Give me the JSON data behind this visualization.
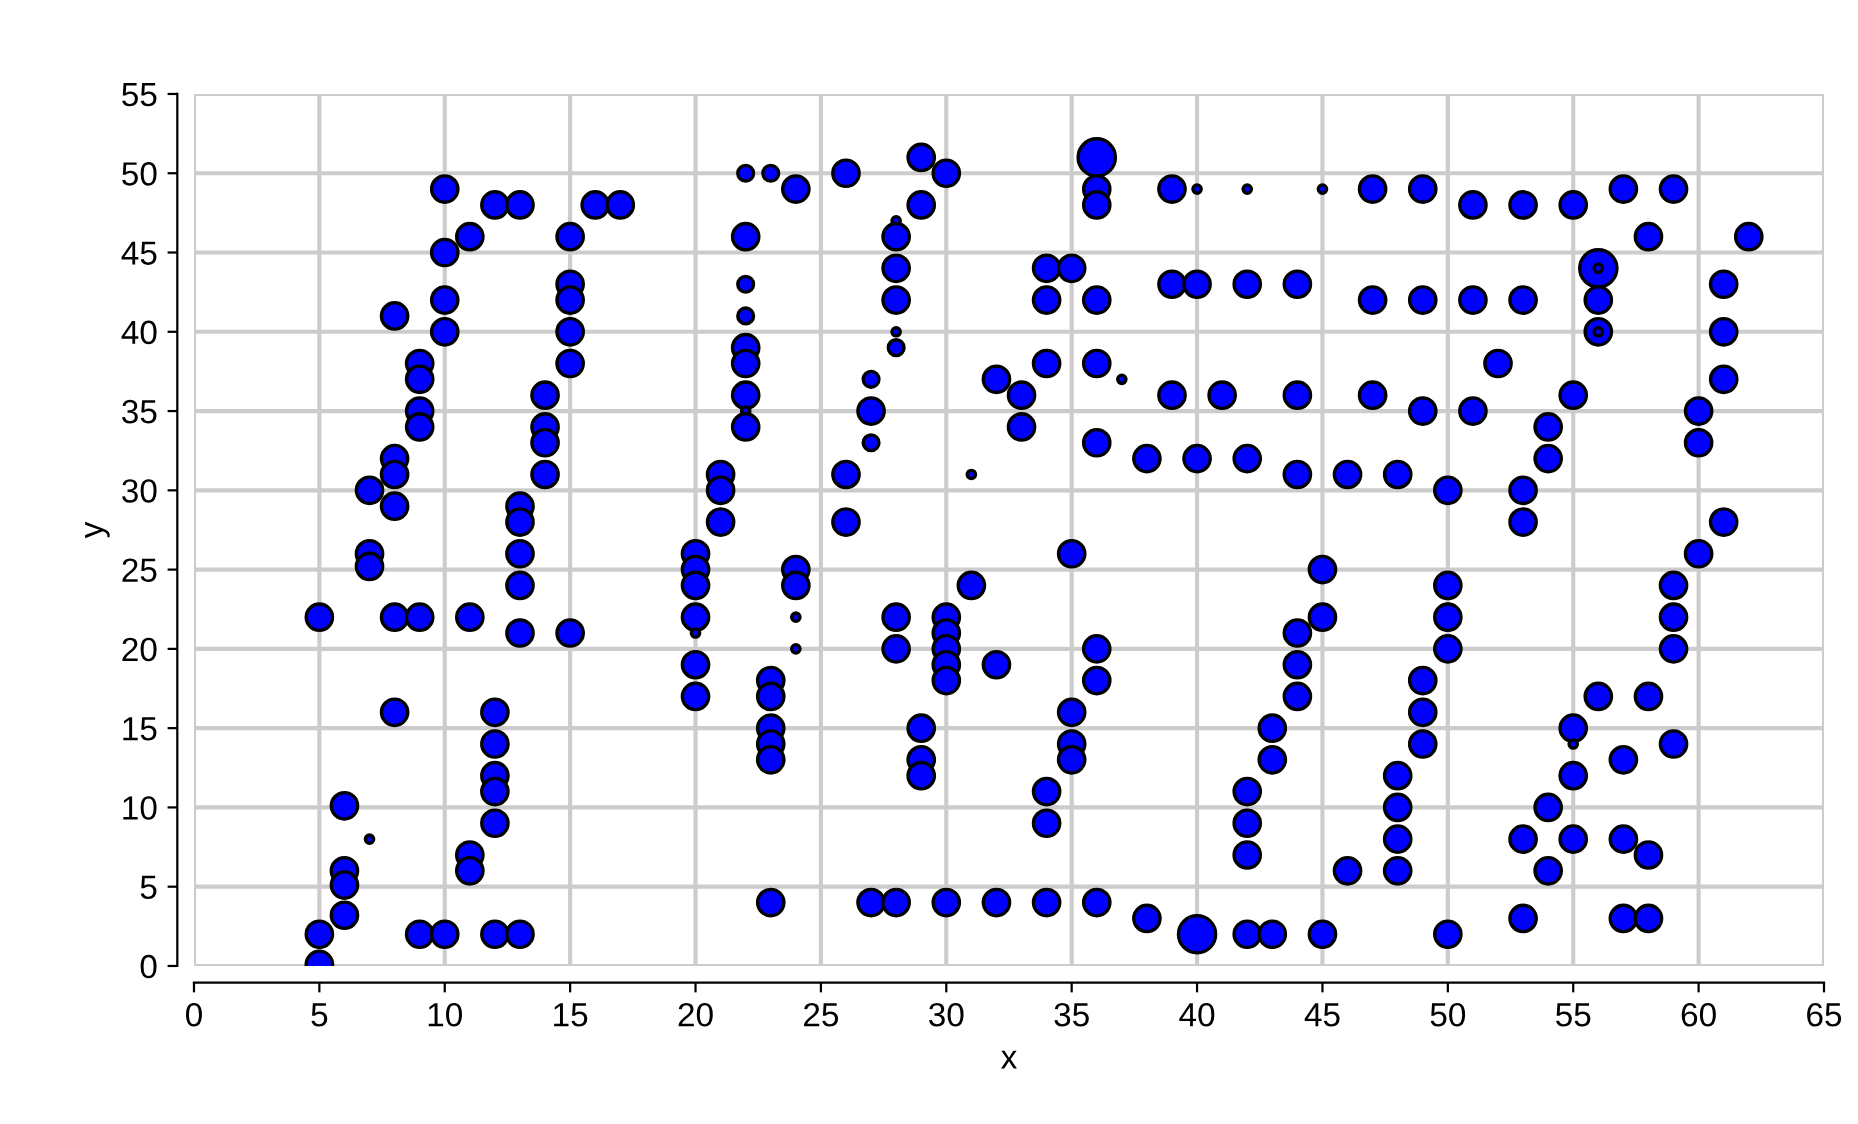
{
  "chart_data": {
    "type": "bubble",
    "xlabel": "x",
    "ylabel": "y",
    "xlim": [
      0,
      65
    ],
    "ylim": [
      0,
      55
    ],
    "xticks": [
      0,
      5,
      10,
      15,
      20,
      25,
      30,
      35,
      40,
      45,
      50,
      55,
      60,
      65
    ],
    "yticks": [
      0,
      5,
      10,
      15,
      20,
      25,
      30,
      35,
      40,
      45,
      50,
      55
    ],
    "grid": true,
    "marker": "circle",
    "series": [
      {
        "color": "#0000ff",
        "x": [
          5,
          5,
          5,
          6,
          6,
          6,
          6,
          7,
          7,
          7,
          7,
          8,
          8,
          8,
          8,
          8,
          8,
          9,
          9,
          9,
          9,
          9,
          9,
          10,
          10,
          10,
          10,
          10,
          11,
          11,
          11,
          11,
          12,
          12,
          12,
          12,
          12,
          12,
          12,
          13,
          13,
          13,
          13,
          13,
          13,
          13,
          14,
          14,
          14,
          14,
          15,
          15,
          15,
          15,
          15,
          15,
          16,
          17,
          20,
          20,
          20,
          20,
          20,
          20,
          20,
          21,
          21,
          21,
          22,
          22,
          22,
          22,
          22,
          22,
          22,
          22,
          22,
          23,
          23,
          23,
          23,
          23,
          23,
          23,
          24,
          24,
          24,
          24,
          24,
          26,
          26,
          26,
          27,
          27,
          27,
          27,
          28,
          28,
          28,
          28,
          28,
          28,
          28,
          28,
          28,
          29,
          29,
          29,
          29,
          29,
          30,
          30,
          30,
          30,
          30,
          30,
          30,
          31,
          31,
          32,
          32,
          32,
          33,
          33,
          34,
          34,
          34,
          34,
          34,
          34,
          35,
          35,
          35,
          35,
          35,
          36,
          36,
          36,
          36,
          36,
          36,
          36,
          36,
          36,
          37,
          38,
          38,
          39,
          39,
          39,
          40,
          40,
          40,
          40,
          41,
          42,
          42,
          42,
          42,
          42,
          42,
          42,
          43,
          43,
          43,
          44,
          44,
          44,
          44,
          44,
          44,
          45,
          45,
          45,
          45,
          46,
          46,
          47,
          47,
          47,
          48,
          48,
          48,
          48,
          48,
          49,
          49,
          49,
          49,
          49,
          49,
          50,
          50,
          50,
          50,
          50,
          51,
          51,
          51,
          52,
          53,
          53,
          53,
          53,
          53,
          53,
          54,
          54,
          54,
          54,
          55,
          55,
          55,
          55,
          55,
          55,
          56,
          56,
          56,
          56,
          56,
          56,
          57,
          57,
          57,
          57,
          58,
          58,
          58,
          58,
          59,
          59,
          59,
          59,
          59,
          60,
          60,
          60,
          61,
          61,
          61,
          61,
          62
        ],
        "values": [
          22,
          2,
          0.1,
          10.1,
          6,
          5.1,
          3.2,
          30,
          26,
          25.2,
          8,
          41,
          32,
          31,
          29,
          22,
          16,
          38,
          37,
          35,
          34,
          22,
          2,
          49,
          45,
          42,
          40,
          2,
          46,
          22,
          7,
          6,
          48,
          16,
          14,
          12,
          11,
          9,
          2,
          48,
          29,
          28,
          26,
          24,
          21,
          2,
          36,
          34,
          33,
          31,
          46,
          43,
          42,
          40,
          38,
          21,
          48,
          48,
          26,
          25,
          24,
          22,
          21,
          19,
          17,
          31,
          30,
          28,
          50,
          46,
          43,
          41,
          39,
          38,
          36,
          35,
          34,
          50,
          18,
          17,
          15,
          14,
          13,
          4,
          49,
          25,
          24,
          22,
          20,
          50,
          31,
          28,
          37,
          35,
          33,
          4,
          47,
          46,
          44,
          42,
          40,
          39,
          22,
          20,
          4,
          51,
          48,
          15,
          13,
          12,
          50,
          22,
          21,
          20,
          19,
          18,
          4,
          31,
          24,
          37,
          19,
          4,
          36,
          34,
          44,
          42,
          38,
          11,
          9,
          4,
          44,
          26,
          16,
          14,
          13,
          51,
          49,
          48,
          42,
          38,
          33,
          20,
          18,
          4,
          37,
          32,
          3,
          49,
          43,
          36,
          49,
          43,
          32,
          2,
          36,
          49,
          43,
          32,
          11,
          9,
          7,
          2,
          15,
          13,
          2,
          43,
          36,
          31,
          21,
          19,
          17,
          49,
          25,
          22,
          2,
          31,
          6,
          49,
          42,
          36,
          31,
          12,
          10,
          8,
          6,
          49,
          42,
          35,
          18,
          16,
          14,
          30,
          24,
          22,
          20,
          2,
          48,
          42,
          35,
          38,
          48,
          42,
          30,
          28,
          8,
          3,
          34,
          32,
          10,
          6,
          48,
          36,
          15,
          14,
          12,
          8,
          44,
          44,
          42,
          40,
          40,
          17,
          49,
          13,
          8,
          3,
          46,
          17,
          7,
          3,
          49,
          24,
          22,
          20,
          14,
          35,
          33,
          26,
          43,
          40,
          37,
          28,
          46
        ],
        "sizes": [
          0.5,
          0.5,
          0.5,
          0.5,
          0.5,
          0.5,
          0.5,
          0.5,
          0.5,
          0.5,
          0.05,
          0.5,
          0.5,
          0.5,
          0.5,
          0.5,
          0.5,
          0.5,
          0.5,
          0.5,
          0.5,
          0.5,
          0.5,
          0.5,
          0.5,
          0.5,
          0.5,
          0.5,
          0.5,
          0.5,
          0.5,
          0.5,
          0.5,
          0.5,
          0.5,
          0.5,
          0.5,
          0.5,
          0.5,
          0.5,
          0.5,
          0.5,
          0.5,
          0.5,
          0.5,
          0.5,
          0.5,
          0.5,
          0.5,
          0.5,
          0.5,
          0.5,
          0.5,
          0.5,
          0.5,
          0.5,
          0.5,
          0.5,
          0.5,
          0.5,
          0.5,
          0.5,
          0.05,
          0.5,
          0.5,
          0.5,
          0.5,
          0.5,
          0.18,
          0.5,
          0.18,
          0.18,
          0.5,
          0.5,
          0.5,
          0.05,
          0.5,
          0.18,
          0.5,
          0.5,
          0.5,
          0.5,
          0.5,
          0.5,
          0.5,
          0.5,
          0.5,
          0.05,
          0.05,
          0.5,
          0.5,
          0.5,
          0.18,
          0.5,
          0.18,
          0.5,
          0.05,
          0.5,
          0.5,
          0.5,
          0.05,
          0.18,
          0.5,
          0.5,
          0.5,
          0.5,
          0.5,
          0.5,
          0.5,
          0.5,
          0.5,
          0.5,
          0.5,
          0.5,
          0.5,
          0.5,
          0.5,
          0.05,
          0.5,
          0.5,
          0.5,
          0.5,
          0.5,
          0.5,
          0.5,
          0.5,
          0.5,
          0.5,
          0.5,
          0.5,
          0.5,
          0.5,
          0.5,
          0.5,
          0.5,
          1,
          0.5,
          0.5,
          0.5,
          0.5,
          0.5,
          0.5,
          0.5,
          0.5,
          0.05,
          0.5,
          0.5,
          0.5,
          0.5,
          0.5,
          0.05,
          0.5,
          0.5,
          1,
          0.5,
          0.05,
          0.5,
          0.5,
          0.5,
          0.5,
          0.5,
          0.5,
          0.5,
          0.5,
          0.5,
          0.5,
          0.5,
          0.5,
          0.5,
          0.5,
          0.5,
          0.05,
          0.5,
          0.5,
          0.5,
          0.5,
          0.5,
          0.5,
          0.5,
          0.5,
          0.5,
          0.5,
          0.5,
          0.5,
          0.5,
          0.5,
          0.5,
          0.5,
          0.5,
          0.5,
          0.5,
          0.5,
          0.5,
          0.5,
          0.5,
          0.5,
          0.5,
          0.5,
          0.5,
          0.5,
          0.5,
          0.5,
          0.5,
          0.5,
          0.5,
          0.5,
          0.5,
          0.5,
          0.5,
          0.5,
          0.5,
          0.5,
          0.5,
          0.05,
          0.5,
          0.5,
          1,
          0.05,
          0.5,
          0.5,
          0.05,
          0.5,
          0.5,
          0.5,
          0.5,
          0.5,
          0.5,
          0.5,
          0.5,
          0.5,
          0.5,
          0.5,
          0.5,
          0.5,
          0.5,
          0.5,
          0.5,
          0.5,
          0.5,
          0.5,
          0.5,
          0.5,
          0.5
        ]
      }
    ]
  }
}
